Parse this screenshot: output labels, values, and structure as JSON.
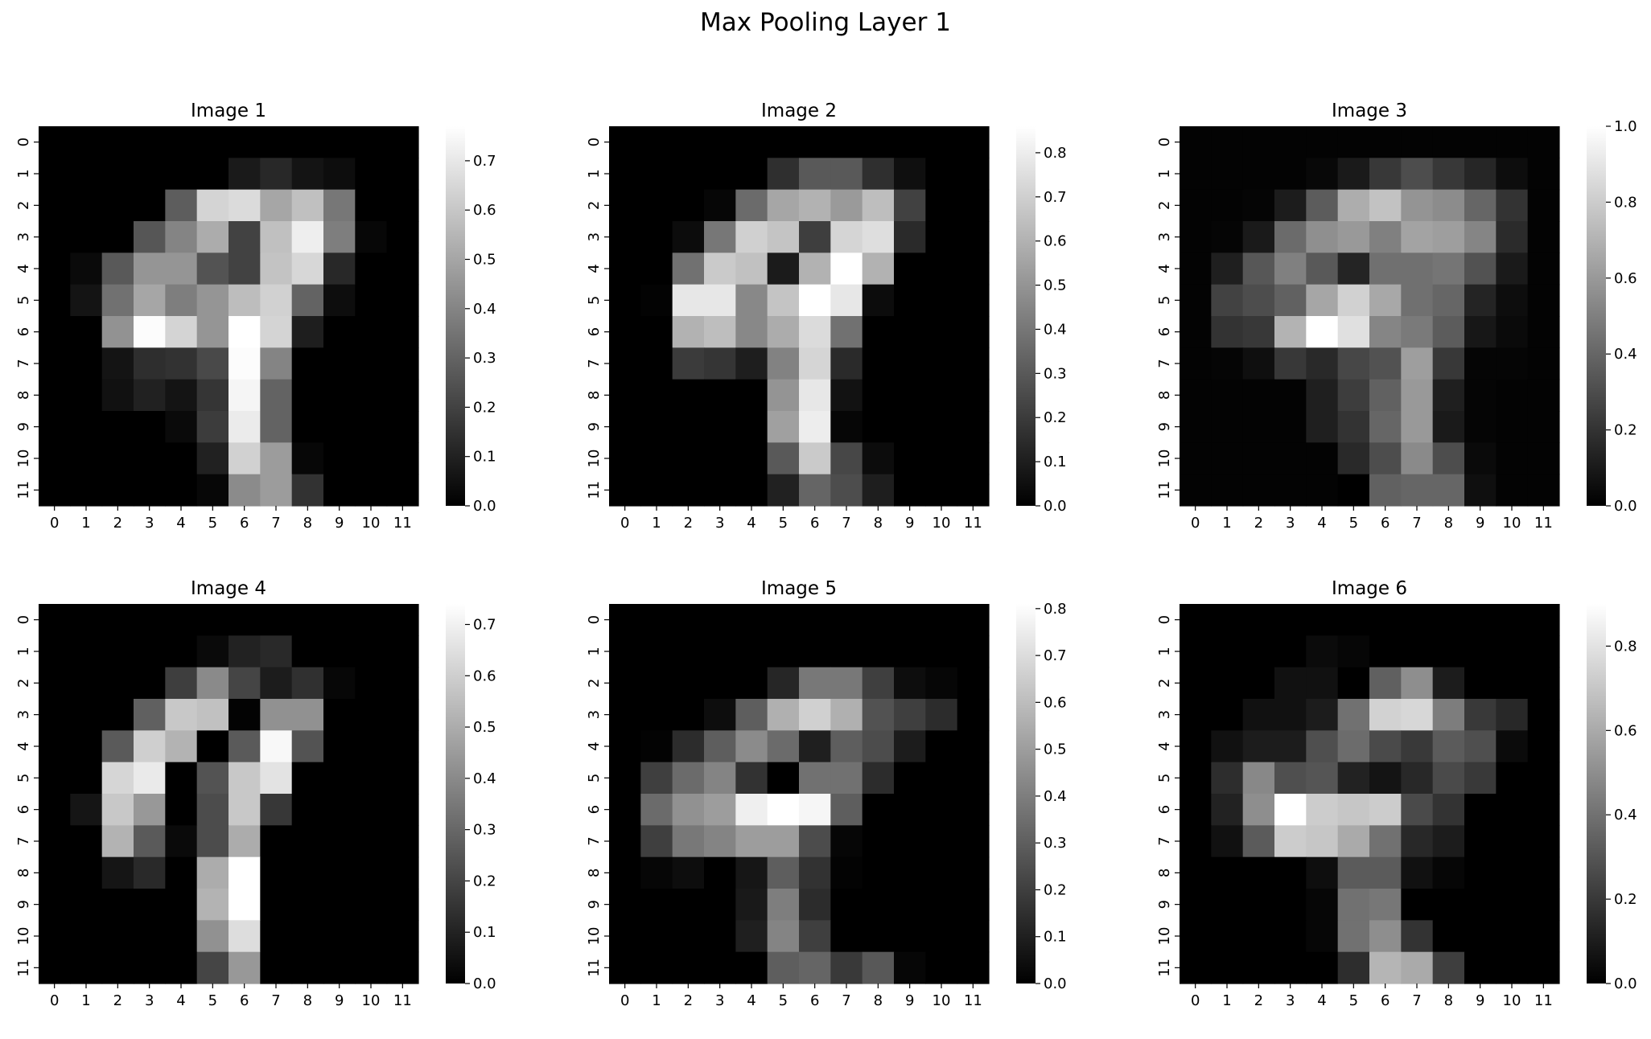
{
  "figure": {
    "title": "Max Pooling Layer 1"
  },
  "chart_data": [
    {
      "type": "heatmap",
      "title": "Image 1",
      "colormap": "gray",
      "x_ticks": [
        "0",
        "1",
        "2",
        "3",
        "4",
        "5",
        "6",
        "7",
        "8",
        "9",
        "10",
        "11"
      ],
      "y_ticks": [
        "0",
        "1",
        "2",
        "3",
        "4",
        "5",
        "6",
        "7",
        "8",
        "9",
        "10",
        "11"
      ],
      "vmin": 0,
      "vmax": 0.77,
      "colorbar_ticks": [
        "0.0",
        "0.1",
        "0.2",
        "0.3",
        "0.4",
        "0.5",
        "0.6",
        "0.7"
      ],
      "values": [
        [
          0,
          0,
          0,
          0,
          0,
          0,
          0,
          0,
          0,
          0,
          0,
          0
        ],
        [
          0,
          0,
          0,
          0,
          0,
          0,
          0.08,
          0.12,
          0.06,
          0.04,
          0,
          0
        ],
        [
          0,
          0,
          0,
          0,
          0.28,
          0.64,
          0.66,
          0.5,
          0.58,
          0.36,
          0,
          0
        ],
        [
          0,
          0,
          0,
          0.26,
          0.4,
          0.52,
          0.2,
          0.58,
          0.72,
          0.38,
          0.02,
          0
        ],
        [
          0,
          0.03,
          0.27,
          0.45,
          0.45,
          0.25,
          0.2,
          0.59,
          0.65,
          0.12,
          0,
          0
        ],
        [
          0,
          0.06,
          0.34,
          0.5,
          0.38,
          0.45,
          0.57,
          0.63,
          0.3,
          0.04,
          0,
          0
        ],
        [
          0,
          0,
          0.44,
          0.76,
          0.64,
          0.45,
          0.77,
          0.64,
          0.09,
          0,
          0,
          0
        ],
        [
          0,
          0,
          0.06,
          0.14,
          0.15,
          0.22,
          0.76,
          0.4,
          0,
          0,
          0,
          0
        ],
        [
          0,
          0,
          0.05,
          0.1,
          0.06,
          0.16,
          0.74,
          0.3,
          0,
          0,
          0,
          0
        ],
        [
          0,
          0,
          0,
          0,
          0.03,
          0.18,
          0.71,
          0.3,
          0,
          0,
          0,
          0
        ],
        [
          0,
          0,
          0,
          0,
          0,
          0.1,
          0.63,
          0.47,
          0.02,
          0,
          0,
          0
        ],
        [
          0,
          0,
          0,
          0,
          0,
          0.02,
          0.42,
          0.47,
          0.15,
          0,
          0,
          0
        ]
      ]
    },
    {
      "type": "heatmap",
      "title": "Image 2",
      "colormap": "gray",
      "x_ticks": [
        "0",
        "1",
        "2",
        "3",
        "4",
        "5",
        "6",
        "7",
        "8",
        "9",
        "10",
        "11"
      ],
      "y_ticks": [
        "0",
        "1",
        "2",
        "3",
        "4",
        "5",
        "6",
        "7",
        "8",
        "9",
        "10",
        "11"
      ],
      "vmin": 0,
      "vmax": 0.86,
      "colorbar_ticks": [
        "0.0",
        "0.1",
        "0.2",
        "0.3",
        "0.4",
        "0.5",
        "0.6",
        "0.7",
        "0.8"
      ],
      "values": [
        [
          0,
          0,
          0,
          0,
          0,
          0,
          0,
          0,
          0,
          0,
          0,
          0
        ],
        [
          0,
          0,
          0,
          0,
          0,
          0.16,
          0.3,
          0.3,
          0.16,
          0.05,
          0,
          0
        ],
        [
          0,
          0,
          0,
          0.02,
          0.36,
          0.56,
          0.6,
          0.52,
          0.64,
          0.22,
          0,
          0
        ],
        [
          0,
          0,
          0.04,
          0.4,
          0.7,
          0.66,
          0.21,
          0.72,
          0.75,
          0.14,
          0,
          0
        ],
        [
          0,
          0,
          0.38,
          0.68,
          0.65,
          0.09,
          0.6,
          0.86,
          0.6,
          0,
          0,
          0
        ],
        [
          0,
          0.01,
          0.78,
          0.78,
          0.46,
          0.66,
          0.86,
          0.78,
          0.04,
          0,
          0,
          0
        ],
        [
          0,
          0,
          0.6,
          0.64,
          0.46,
          0.58,
          0.74,
          0.38,
          0,
          0,
          0,
          0
        ],
        [
          0,
          0,
          0.2,
          0.18,
          0.1,
          0.44,
          0.72,
          0.14,
          0,
          0,
          0,
          0
        ],
        [
          0,
          0,
          0,
          0,
          0,
          0.5,
          0.78,
          0.06,
          0,
          0,
          0,
          0
        ],
        [
          0,
          0,
          0,
          0,
          0,
          0.54,
          0.8,
          0.02,
          0,
          0,
          0,
          0
        ],
        [
          0,
          0,
          0,
          0,
          0,
          0.3,
          0.68,
          0.24,
          0.04,
          0,
          0,
          0
        ],
        [
          0,
          0,
          0,
          0,
          0,
          0.11,
          0.34,
          0.26,
          0.1,
          0,
          0,
          0
        ]
      ]
    },
    {
      "type": "heatmap",
      "title": "Image 3",
      "colormap": "gray",
      "x_ticks": [
        "0",
        "1",
        "2",
        "3",
        "4",
        "5",
        "6",
        "7",
        "8",
        "9",
        "10",
        "11"
      ],
      "y_ticks": [
        "0",
        "1",
        "2",
        "3",
        "4",
        "5",
        "6",
        "7",
        "8",
        "9",
        "10",
        "11"
      ],
      "vmin": 0,
      "vmax": 1.0,
      "colorbar_ticks": [
        "0.0",
        "0.2",
        "0.4",
        "0.6",
        "0.8",
        "1.0"
      ],
      "values": [
        [
          0.01,
          0.01,
          0.01,
          0.01,
          0.01,
          0.01,
          0.01,
          0.01,
          0.01,
          0.01,
          0.01,
          0.01
        ],
        [
          0.01,
          0.01,
          0.01,
          0.01,
          0.03,
          0.1,
          0.22,
          0.3,
          0.22,
          0.15,
          0.05,
          0.01
        ],
        [
          0.01,
          0.01,
          0.02,
          0.11,
          0.36,
          0.68,
          0.76,
          0.58,
          0.55,
          0.4,
          0.2,
          0.01
        ],
        [
          0.01,
          0.02,
          0.1,
          0.42,
          0.56,
          0.6,
          0.5,
          0.64,
          0.62,
          0.52,
          0.17,
          0.01
        ],
        [
          0.01,
          0.12,
          0.34,
          0.5,
          0.35,
          0.14,
          0.44,
          0.44,
          0.46,
          0.32,
          0.1,
          0.01
        ],
        [
          0.01,
          0.26,
          0.3,
          0.38,
          0.65,
          0.82,
          0.66,
          0.44,
          0.4,
          0.14,
          0.05,
          0.01
        ],
        [
          0.01,
          0.2,
          0.22,
          0.7,
          1.0,
          0.88,
          0.52,
          0.48,
          0.36,
          0.09,
          0.04,
          0.01
        ],
        [
          0.01,
          0.02,
          0.06,
          0.22,
          0.16,
          0.28,
          0.32,
          0.62,
          0.22,
          0.02,
          0.02,
          0.01
        ],
        [
          0.01,
          0.01,
          0.01,
          0.01,
          0.12,
          0.24,
          0.38,
          0.6,
          0.12,
          0.02,
          0.01,
          0.01
        ],
        [
          0.01,
          0.01,
          0.01,
          0.01,
          0.12,
          0.2,
          0.4,
          0.6,
          0.1,
          0.02,
          0.01,
          0.01
        ],
        [
          0.01,
          0.01,
          0.01,
          0.01,
          0.01,
          0.16,
          0.3,
          0.54,
          0.3,
          0.04,
          0.01,
          0.01
        ],
        [
          0.01,
          0.01,
          0.01,
          0.01,
          0.01,
          0.0,
          0.38,
          0.4,
          0.4,
          0.06,
          0.01,
          0.01
        ]
      ]
    },
    {
      "type": "heatmap",
      "title": "Image 4",
      "colormap": "gray",
      "x_ticks": [
        "0",
        "1",
        "2",
        "3",
        "4",
        "5",
        "6",
        "7",
        "8",
        "9",
        "10",
        "11"
      ],
      "y_ticks": [
        "0",
        "1",
        "2",
        "3",
        "4",
        "5",
        "6",
        "7",
        "8",
        "9",
        "10",
        "11"
      ],
      "vmin": 0,
      "vmax": 0.74,
      "colorbar_ticks": [
        "0.0",
        "0.1",
        "0.2",
        "0.3",
        "0.4",
        "0.5",
        "0.6",
        "0.7"
      ],
      "values": [
        [
          0,
          0,
          0,
          0,
          0,
          0,
          0,
          0,
          0,
          0,
          0,
          0
        ],
        [
          0,
          0,
          0,
          0,
          0,
          0.03,
          0.1,
          0.12,
          0,
          0,
          0,
          0
        ],
        [
          0,
          0,
          0,
          0,
          0.18,
          0.4,
          0.2,
          0.08,
          0.14,
          0.02,
          0,
          0
        ],
        [
          0,
          0,
          0,
          0.28,
          0.58,
          0.56,
          0.01,
          0.42,
          0.42,
          0,
          0,
          0
        ],
        [
          0,
          0,
          0.26,
          0.6,
          0.52,
          0,
          0.26,
          0.72,
          0.24,
          0,
          0,
          0
        ],
        [
          0,
          0,
          0.62,
          0.68,
          0,
          0.24,
          0.58,
          0.66,
          0,
          0,
          0,
          0
        ],
        [
          0,
          0.06,
          0.58,
          0.44,
          0,
          0.22,
          0.58,
          0.16,
          0,
          0,
          0,
          0
        ],
        [
          0,
          0,
          0.52,
          0.26,
          0.03,
          0.22,
          0.5,
          0,
          0,
          0,
          0,
          0
        ],
        [
          0,
          0,
          0.06,
          0.12,
          0,
          0.5,
          0.74,
          0,
          0,
          0,
          0,
          0
        ],
        [
          0,
          0,
          0,
          0,
          0,
          0.52,
          0.74,
          0,
          0,
          0,
          0,
          0
        ],
        [
          0,
          0,
          0,
          0,
          0,
          0.42,
          0.64,
          0,
          0,
          0,
          0,
          0
        ],
        [
          0,
          0,
          0,
          0,
          0,
          0.2,
          0.44,
          0,
          0,
          0,
          0,
          0
        ]
      ]
    },
    {
      "type": "heatmap",
      "title": "Image 5",
      "colormap": "gray",
      "x_ticks": [
        "0",
        "1",
        "2",
        "3",
        "4",
        "5",
        "6",
        "7",
        "8",
        "9",
        "10",
        "11"
      ],
      "y_ticks": [
        "0",
        "1",
        "2",
        "3",
        "4",
        "5",
        "6",
        "7",
        "8",
        "9",
        "10",
        "11"
      ],
      "vmin": 0,
      "vmax": 0.81,
      "colorbar_ticks": [
        "0.0",
        "0.1",
        "0.2",
        "0.3",
        "0.4",
        "0.5",
        "0.6",
        "0.7",
        "0.8"
      ],
      "values": [
        [
          0,
          0,
          0,
          0,
          0,
          0,
          0,
          0,
          0,
          0,
          0,
          0
        ],
        [
          0,
          0,
          0,
          0,
          0,
          0,
          0,
          0,
          0,
          0,
          0,
          0
        ],
        [
          0,
          0,
          0,
          0,
          0,
          0.12,
          0.38,
          0.38,
          0.2,
          0.04,
          0.02,
          0
        ],
        [
          0,
          0,
          0,
          0.04,
          0.3,
          0.56,
          0.66,
          0.56,
          0.26,
          0.2,
          0.14,
          0
        ],
        [
          0,
          0.01,
          0.14,
          0.3,
          0.44,
          0.34,
          0.1,
          0.3,
          0.24,
          0.09,
          0,
          0
        ],
        [
          0,
          0.2,
          0.34,
          0.42,
          0.16,
          0.0,
          0.36,
          0.36,
          0.14,
          0,
          0,
          0
        ],
        [
          0,
          0.34,
          0.46,
          0.5,
          0.76,
          0.81,
          0.78,
          0.3,
          0,
          0,
          0,
          0
        ],
        [
          0,
          0.2,
          0.38,
          0.42,
          0.5,
          0.5,
          0.24,
          0.02,
          0,
          0,
          0,
          0
        ],
        [
          0,
          0.02,
          0.04,
          0,
          0.07,
          0.3,
          0.16,
          0.01,
          0,
          0,
          0,
          0
        ],
        [
          0,
          0,
          0,
          0,
          0.08,
          0.4,
          0.14,
          0,
          0,
          0,
          0,
          0
        ],
        [
          0,
          0,
          0,
          0,
          0.1,
          0.42,
          0.2,
          0,
          0,
          0,
          0,
          0
        ],
        [
          0,
          0,
          0,
          0,
          0,
          0.3,
          0.32,
          0.18,
          0.28,
          0.02,
          0,
          0
        ]
      ]
    },
    {
      "type": "heatmap",
      "title": "Image 6",
      "colormap": "gray",
      "x_ticks": [
        "0",
        "1",
        "2",
        "3",
        "4",
        "5",
        "6",
        "7",
        "8",
        "9",
        "10",
        "11"
      ],
      "y_ticks": [
        "0",
        "1",
        "2",
        "3",
        "4",
        "5",
        "6",
        "7",
        "8",
        "9",
        "10",
        "11"
      ],
      "vmin": 0,
      "vmax": 0.9,
      "colorbar_ticks": [
        "0.0",
        "0.2",
        "0.4",
        "0.6",
        "0.8"
      ],
      "values": [
        [
          0,
          0,
          0,
          0,
          0,
          0,
          0,
          0,
          0,
          0,
          0,
          0
        ],
        [
          0,
          0,
          0,
          0,
          0.04,
          0.02,
          0,
          0,
          0,
          0,
          0,
          0
        ],
        [
          0,
          0,
          0,
          0.06,
          0.06,
          0,
          0.34,
          0.5,
          0.1,
          0,
          0,
          0
        ],
        [
          0,
          0,
          0.06,
          0.06,
          0.1,
          0.4,
          0.74,
          0.76,
          0.44,
          0.2,
          0.14,
          0
        ],
        [
          0,
          0.06,
          0.1,
          0.1,
          0.28,
          0.38,
          0.26,
          0.2,
          0.32,
          0.28,
          0.04,
          0
        ],
        [
          0,
          0.16,
          0.48,
          0.28,
          0.3,
          0.12,
          0.07,
          0.14,
          0.26,
          0.2,
          0,
          0
        ],
        [
          0,
          0.12,
          0.5,
          0.9,
          0.72,
          0.7,
          0.72,
          0.26,
          0.18,
          0,
          0,
          0
        ],
        [
          0,
          0.06,
          0.32,
          0.72,
          0.7,
          0.6,
          0.4,
          0.14,
          0.1,
          0,
          0,
          0
        ],
        [
          0,
          0,
          0,
          0,
          0.05,
          0.32,
          0.32,
          0.06,
          0.02,
          0,
          0,
          0
        ],
        [
          0,
          0,
          0,
          0,
          0.02,
          0.4,
          0.42,
          0,
          0,
          0,
          0,
          0
        ],
        [
          0,
          0,
          0,
          0,
          0.02,
          0.4,
          0.5,
          0.18,
          0,
          0,
          0,
          0
        ],
        [
          0,
          0,
          0,
          0,
          0,
          0.16,
          0.64,
          0.6,
          0.22,
          0,
          0,
          0
        ]
      ]
    }
  ]
}
